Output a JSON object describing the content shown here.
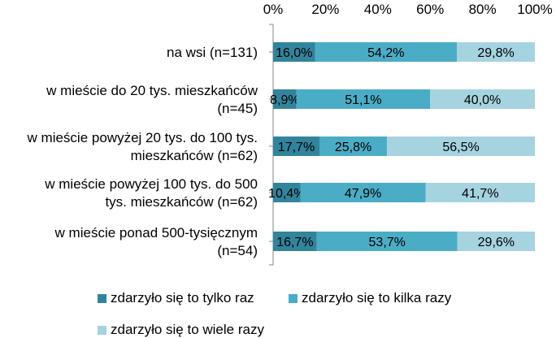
{
  "chart_data": {
    "type": "bar",
    "orientation": "horizontal",
    "stacked": true,
    "xlim": [
      0,
      100
    ],
    "x_ticks": [
      "0%",
      "20%",
      "40%",
      "60%",
      "80%",
      "100%"
    ],
    "x_tick_values": [
      0,
      20,
      40,
      60,
      80,
      100
    ],
    "grid": false,
    "legend_position": "bottom",
    "categories": [
      [
        "na wsi (n=131)"
      ],
      [
        "w mieście do 20 tys. mieszkańców",
        "(n=45)"
      ],
      [
        "w mieście powyżej 20 tys. do 100 tys.",
        "mieszkańców (n=62)"
      ],
      [
        "w mieście powyżej 100 tys. do 500",
        "tys. mieszkańców (n=62)"
      ],
      [
        "w mieście ponad 500-tysięcznym",
        "(n=54)"
      ]
    ],
    "series": [
      {
        "name": "zdarzyło się to tylko raz",
        "color": "#31849b",
        "values": [
          16.0,
          8.9,
          17.7,
          10.4,
          16.7
        ],
        "labels": [
          "16,0%",
          "8,9%",
          "17,7%",
          "10,4%",
          "16,7%"
        ]
      },
      {
        "name": "zdarzyło się to kilka razy",
        "color": "#4bacc6",
        "values": [
          54.2,
          51.1,
          25.8,
          47.9,
          53.7
        ],
        "labels": [
          "54,2%",
          "51,1%",
          "25,8%",
          "47,9%",
          "53,7%"
        ]
      },
      {
        "name": "zdarzyło się to wiele razy",
        "color": "#a5d3e0",
        "values": [
          29.8,
          40.0,
          56.5,
          41.7,
          29.6
        ],
        "labels": [
          "29,8%",
          "40,0%",
          "56,5%",
          "41,7%",
          "29,6%"
        ]
      }
    ]
  }
}
